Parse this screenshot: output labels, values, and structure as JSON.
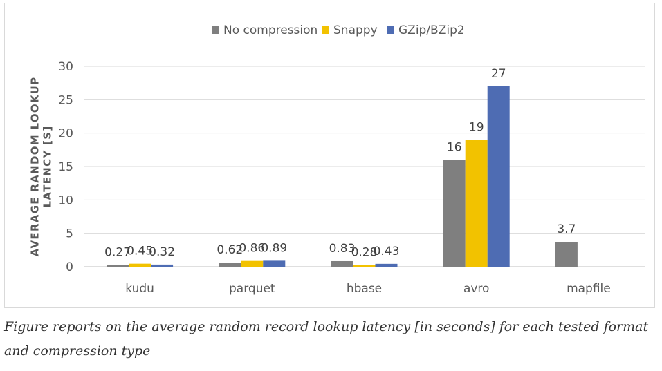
{
  "chart_data": {
    "type": "bar",
    "title": "",
    "xlabel": "",
    "ylabel": "AVERAGE RANDOM LOOKUP LATENCY [S]",
    "ylim": [
      0,
      30
    ],
    "yticks": [
      0,
      5,
      10,
      15,
      20,
      25,
      30
    ],
    "grid": true,
    "legend_position": "top",
    "categories": [
      "kudu",
      "parquet",
      "hbase",
      "avro",
      "mapfile"
    ],
    "series": [
      {
        "name": "No compression",
        "color": "#7f7f7f",
        "values": [
          0.27,
          0.62,
          0.83,
          16,
          3.7
        ],
        "labels": [
          "0.27",
          "0.62",
          "0.83",
          "16",
          "3.7"
        ]
      },
      {
        "name": "Snappy",
        "color": "#f2c200",
        "values": [
          0.45,
          0.86,
          0.28,
          19,
          null
        ],
        "labels": [
          "0.45",
          "0.86",
          "0.28",
          "19",
          ""
        ]
      },
      {
        "name": "GZip/BZip2",
        "color": "#4e6cb3",
        "values": [
          0.32,
          0.89,
          0.43,
          27,
          null
        ],
        "labels": [
          "0.32",
          "0.89",
          "0.43",
          "27",
          ""
        ]
      }
    ]
  },
  "caption": "Figure reports on the average random record lookup latency [in seconds] for each tested format and compression type"
}
